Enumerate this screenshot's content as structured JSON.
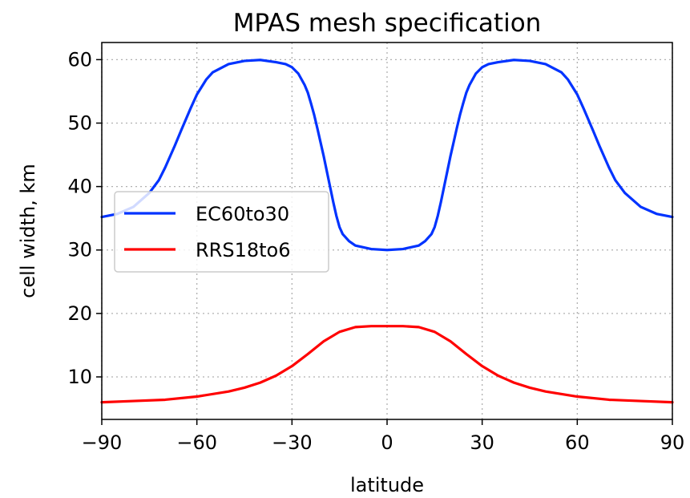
{
  "chart_data": {
    "type": "line",
    "title": "MPAS mesh specification",
    "xlabel": "latitude",
    "ylabel": "cell width, km",
    "xlim": [
      -90,
      90
    ],
    "ylim": [
      3.3,
      62.7
    ],
    "xticks": [
      -90,
      -60,
      -30,
      0,
      30,
      60,
      90
    ],
    "xtick_labels": [
      "−90",
      "−60",
      "−30",
      "0",
      "30",
      "60",
      "90"
    ],
    "yticks": [
      10,
      20,
      30,
      40,
      50,
      60
    ],
    "ytick_labels": [
      "10",
      "20",
      "30",
      "40",
      "50",
      "60"
    ],
    "grid": true,
    "legend_position": "center-left",
    "series": [
      {
        "name": "EC60to30",
        "color": "#0033ff",
        "x": [
          -90,
          -85,
          -80,
          -75,
          -72,
          -70,
          -67,
          -65,
          -62,
          -60,
          -57,
          -55,
          -50,
          -45,
          -40,
          -35,
          -32,
          -30,
          -28,
          -26,
          -25,
          -24,
          -23,
          -22,
          -21,
          -20,
          -19,
          -18,
          -17,
          -16,
          -15,
          -14,
          -12,
          -10,
          -5,
          0,
          5,
          10,
          12,
          14,
          15,
          16,
          17,
          18,
          19,
          20,
          21,
          22,
          23,
          24,
          25,
          26,
          28,
          30,
          32,
          35,
          40,
          45,
          50,
          55,
          57,
          60,
          62,
          65,
          67,
          70,
          72,
          75,
          80,
          85,
          90
        ],
        "values": [
          35.2,
          35.7,
          36.8,
          39.0,
          41.0,
          43.0,
          46.4,
          48.8,
          52.3,
          54.5,
          56.9,
          58.0,
          59.3,
          59.8,
          59.95,
          59.6,
          59.3,
          58.8,
          57.8,
          56.0,
          54.8,
          53.1,
          51.3,
          49.2,
          47.0,
          44.8,
          42.4,
          40.0,
          37.6,
          35.4,
          33.6,
          32.5,
          31.4,
          30.7,
          30.15,
          30.0,
          30.15,
          30.7,
          31.4,
          32.5,
          33.6,
          35.4,
          37.6,
          40.0,
          42.4,
          44.8,
          47.0,
          49.2,
          51.3,
          53.1,
          54.8,
          56.0,
          57.8,
          58.8,
          59.3,
          59.6,
          59.95,
          59.8,
          59.3,
          58.0,
          56.9,
          54.5,
          52.3,
          48.8,
          46.4,
          43.0,
          41.0,
          39.0,
          36.8,
          35.7,
          35.2
        ]
      },
      {
        "name": "RRS18to6",
        "color": "#ff0000",
        "x": [
          -90,
          -80,
          -70,
          -60,
          -50,
          -45,
          -40,
          -35,
          -30,
          -25,
          -20,
          -15,
          -10,
          -5,
          0,
          5,
          10,
          15,
          20,
          25,
          30,
          35,
          40,
          45,
          50,
          60,
          70,
          80,
          90
        ],
        "values": [
          6.0,
          6.2,
          6.4,
          6.9,
          7.7,
          8.3,
          9.1,
          10.2,
          11.7,
          13.6,
          15.6,
          17.1,
          17.85,
          18.0,
          18.0,
          18.0,
          17.85,
          17.1,
          15.6,
          13.6,
          11.7,
          10.2,
          9.1,
          8.3,
          7.7,
          6.9,
          6.4,
          6.2,
          6.0
        ]
      }
    ]
  }
}
